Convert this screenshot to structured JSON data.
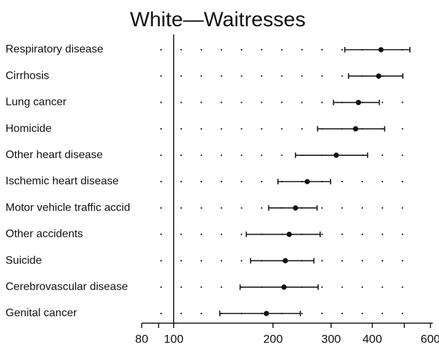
{
  "chart_data": {
    "type": "dot",
    "title": "White—Waitresses",
    "categories": [
      "Respiratory disease",
      "Cirrhosis",
      "Lung cancer",
      "Homicide",
      "Other heart disease",
      "Ischemic heart disease",
      "Motor vehicle traffic accid",
      "Other accidents",
      "Suicide",
      "Cerebrovascular disease",
      "Genital cancer"
    ],
    "values": [
      425,
      418,
      363,
      356,
      311,
      254,
      234,
      224,
      218,
      216,
      191
    ],
    "lower": [
      330,
      339,
      305,
      273,
      234,
      207,
      194,
      166,
      171,
      159,
      138
    ],
    "upper": [
      520,
      495,
      420,
      436,
      387,
      299,
      272,
      278,
      266,
      274,
      242
    ],
    "color": "#111111",
    "log_scale": true,
    "xlim": [
      80,
      610
    ],
    "xticks": [
      80,
      100,
      200,
      300,
      400,
      600
    ],
    "minor_xticks": [
      90,
      500
    ],
    "reference_line": 100
  }
}
